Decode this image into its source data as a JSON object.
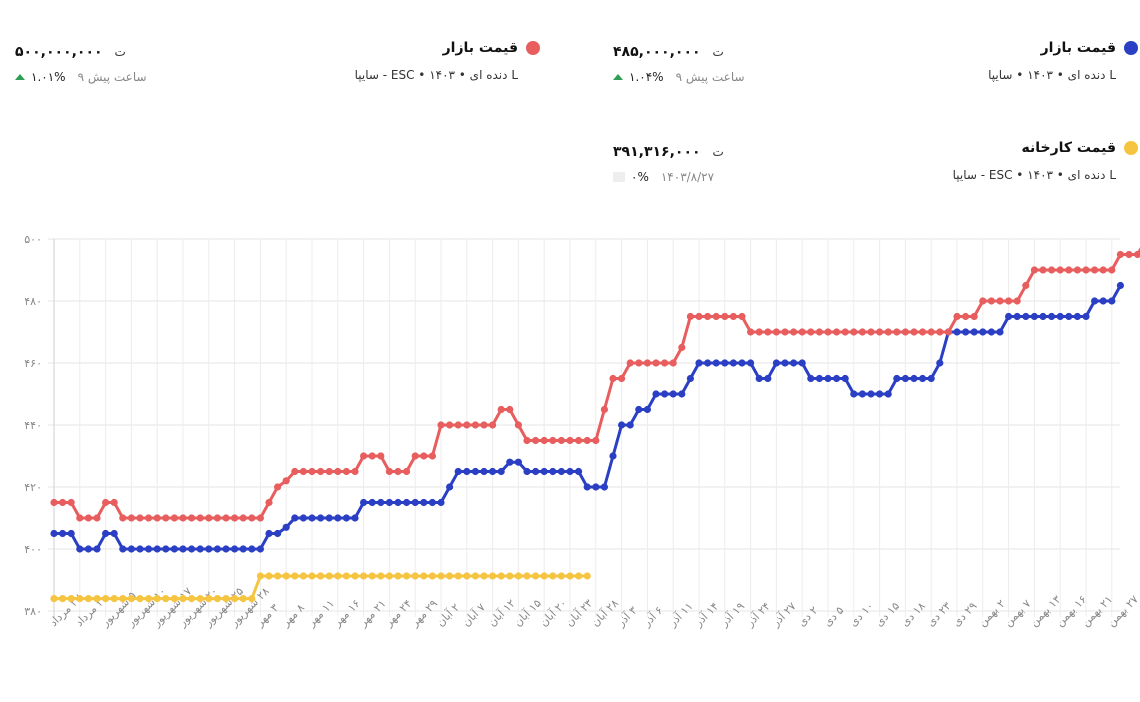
{
  "legend": [
    {
      "id": "market-red",
      "title": "قیمت بازار",
      "subtitle": "L دنده ای • ۱۴۰۳ • ESC - سایپا",
      "price": "۵۰۰,۰۰۰,۰۰۰",
      "currency": "ت",
      "change_pct": "۱.۰۱%",
      "change_direction": "up",
      "updated": "۹ ساعت پیش",
      "color": "#e85d5d"
    },
    {
      "id": "market-blue",
      "title": "قیمت بازار",
      "subtitle": "L دنده ای • ۱۴۰۳ • سایپا",
      "price": "۴۸۵,۰۰۰,۰۰۰",
      "currency": "ت",
      "change_pct": "۱.۰۴%",
      "change_direction": "up",
      "updated": "۹ ساعت پیش",
      "color": "#2a3fc4"
    },
    {
      "id": "factory-yellow",
      "title": "قیمت کارخانه",
      "subtitle": "L دنده ای • ۱۴۰۳ • ESC - سایپا",
      "price": "۳۹۱,۳۱۶,۰۰۰",
      "currency": "ت",
      "change_pct": "۰%",
      "change_direction": "neutral",
      "updated": "۱۴۰۳/۸/۲۷",
      "color": "#f5c542"
    }
  ],
  "chart_data": {
    "type": "line",
    "title": "",
    "xlabel": "",
    "ylabel": "",
    "ylim": [
      380,
      500
    ],
    "yticks": [
      {
        "value": 380,
        "label": "۳۸۰"
      },
      {
        "value": 400,
        "label": "۴۰۰"
      },
      {
        "value": 420,
        "label": "۴۲۰"
      },
      {
        "value": 440,
        "label": "۴۴۰"
      },
      {
        "value": 460,
        "label": "۴۶۰"
      },
      {
        "value": 480,
        "label": "۴۸۰"
      },
      {
        "value": 500,
        "label": "۵۰۰"
      }
    ],
    "grid": true,
    "legend_position": "top",
    "num_points": 125,
    "xtick_labels": [
      {
        "index": 0,
        "label": "۲۷ مرداد"
      },
      {
        "index": 3,
        "label": "۳۰ مرداد"
      },
      {
        "index": 6,
        "label": "۵ شهریور"
      },
      {
        "index": 9,
        "label": "۱۰ شهریور"
      },
      {
        "index": 12,
        "label": "۱۷ شهریور"
      },
      {
        "index": 15,
        "label": "۲۰ شهریور"
      },
      {
        "index": 18,
        "label": "۲۵ شهریور"
      },
      {
        "index": 21,
        "label": "۲۸ شهریور"
      },
      {
        "index": 24,
        "label": "۳ مهر"
      },
      {
        "index": 27,
        "label": "۸ مهر"
      },
      {
        "index": 30,
        "label": "۱۱ مهر"
      },
      {
        "index": 33,
        "label": "۱۶ مهر"
      },
      {
        "index": 36,
        "label": "۲۱ مهر"
      },
      {
        "index": 39,
        "label": "۲۴ مهر"
      },
      {
        "index": 42,
        "label": "۲۹ مهر"
      },
      {
        "index": 45,
        "label": "۲ آبان"
      },
      {
        "index": 48,
        "label": "۷ آبان"
      },
      {
        "index": 51,
        "label": "۱۲ آبان"
      },
      {
        "index": 54,
        "label": "۱۵ آبان"
      },
      {
        "index": 57,
        "label": "۲۰ آبان"
      },
      {
        "index": 60,
        "label": "۲۳ آبان"
      },
      {
        "index": 63,
        "label": "۲۸ آبان"
      },
      {
        "index": 66,
        "label": "۳ آذر"
      },
      {
        "index": 69,
        "label": "۶ آذر"
      },
      {
        "index": 72,
        "label": "۱۱ آذر"
      },
      {
        "index": 75,
        "label": "۱۴ آذر"
      },
      {
        "index": 78,
        "label": "۱۹ آذر"
      },
      {
        "index": 81,
        "label": "۲۴ آذر"
      },
      {
        "index": 84,
        "label": "۲۷ آذر"
      },
      {
        "index": 87,
        "label": "۲ دی"
      },
      {
        "index": 90,
        "label": "۵ دی"
      },
      {
        "index": 93,
        "label": "۱۰ دی"
      },
      {
        "index": 96,
        "label": "۱۵ دی"
      },
      {
        "index": 99,
        "label": "۱۸ دی"
      },
      {
        "index": 102,
        "label": "۲۳ دی"
      },
      {
        "index": 105,
        "label": "۲۹ دی"
      },
      {
        "index": 108,
        "label": "۲ بهمن"
      },
      {
        "index": 111,
        "label": "۷ بهمن"
      },
      {
        "index": 114,
        "label": "۱۳ بهمن"
      },
      {
        "index": 117,
        "label": "۱۶ بهمن"
      },
      {
        "index": 120,
        "label": "۲۱ بهمن"
      },
      {
        "index": 123,
        "label": "۲۷ بهمن"
      }
    ],
    "series": [
      {
        "name": "قیمت بازار (ESC - سایپا)",
        "color": "#e85d5d",
        "values": [
          415,
          415,
          415,
          410,
          410,
          410,
          415,
          415,
          410,
          410,
          410,
          410,
          410,
          410,
          410,
          410,
          410,
          410,
          410,
          410,
          410,
          410,
          410,
          410,
          410,
          415,
          420,
          422,
          425,
          425,
          425,
          425,
          425,
          425,
          425,
          425,
          430,
          430,
          430,
          425,
          425,
          425,
          430,
          430,
          430,
          440,
          440,
          440,
          440,
          440,
          440,
          440,
          445,
          445,
          440,
          435,
          435,
          435,
          435,
          435,
          435,
          435,
          435,
          435,
          445,
          455,
          455,
          460,
          460,
          460,
          460,
          460,
          460,
          465,
          475,
          475,
          475,
          475,
          475,
          475,
          475,
          470,
          470,
          470,
          470,
          470,
          470,
          470,
          470,
          470,
          470,
          470,
          470,
          470,
          470,
          470,
          470,
          470,
          470,
          470,
          470,
          470,
          470,
          470,
          470,
          475,
          475,
          475,
          480,
          480,
          480,
          480,
          480,
          485,
          490,
          490,
          490,
          490,
          490,
          490,
          490,
          490,
          490,
          490,
          495,
          495,
          495,
          500
        ]
      },
      {
        "name": "قیمت بازار (سایپا)",
        "color": "#2a3fc4",
        "values": [
          405,
          405,
          405,
          400,
          400,
          400,
          405,
          405,
          400,
          400,
          400,
          400,
          400,
          400,
          400,
          400,
          400,
          400,
          400,
          400,
          400,
          400,
          400,
          400,
          400,
          405,
          405,
          407,
          410,
          410,
          410,
          410,
          410,
          410,
          410,
          410,
          415,
          415,
          415,
          415,
          415,
          415,
          415,
          415,
          415,
          415,
          420,
          425,
          425,
          425,
          425,
          425,
          425,
          428,
          428,
          425,
          425,
          425,
          425,
          425,
          425,
          425,
          420,
          420,
          420,
          430,
          440,
          440,
          445,
          445,
          450,
          450,
          450,
          450,
          455,
          460,
          460,
          460,
          460,
          460,
          460,
          460,
          455,
          455,
          460,
          460,
          460,
          460,
          455,
          455,
          455,
          455,
          455,
          450,
          450,
          450,
          450,
          450,
          455,
          455,
          455,
          455,
          455,
          460,
          470,
          470,
          470,
          470,
          470,
          470,
          470,
          475,
          475,
          475,
          475,
          475,
          475,
          475,
          475,
          475,
          475,
          480,
          480,
          480,
          485
        ]
      },
      {
        "name": "قیمت کارخانه",
        "color": "#f5c542",
        "values": [
          384,
          384,
          384,
          384,
          384,
          384,
          384,
          384,
          384,
          384,
          384,
          384,
          384,
          384,
          384,
          384,
          384,
          384,
          384,
          384,
          384,
          384,
          384,
          384,
          391.3,
          391.3,
          391.3,
          391.3,
          391.3,
          391.3,
          391.3,
          391.3,
          391.3,
          391.3,
          391.3,
          391.3,
          391.3,
          391.3,
          391.3,
          391.3,
          391.3,
          391.3,
          391.3,
          391.3,
          391.3,
          391.3,
          391.3,
          391.3,
          391.3,
          391.3,
          391.3,
          391.3,
          391.3,
          391.3,
          391.3,
          391.3,
          391.3,
          391.3,
          391.3,
          391.3,
          391.3,
          391.3,
          391.3
        ]
      }
    ]
  }
}
